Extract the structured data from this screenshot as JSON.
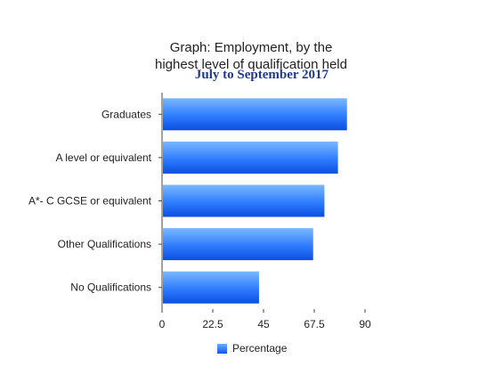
{
  "chart_data": {
    "type": "bar",
    "orientation": "horizontal",
    "title_line1": "Graph:  Employment, by the",
    "title_line2": "highest level of qualification held",
    "subtitle": "July to September 2017",
    "categories": [
      "Graduates",
      "A level or equivalent",
      "A*- C GCSE or equivalent",
      "Other Qualifications",
      "No Qualifications"
    ],
    "series": [
      {
        "name": "Percentage",
        "values": [
          82,
          78,
          72,
          67,
          43
        ],
        "color": "#1a66f5"
      }
    ],
    "xlim": [
      0,
      90
    ],
    "xticks": [
      "0",
      "22.5",
      "45",
      "67.5",
      "90"
    ],
    "grid": false,
    "legend_position": "bottom"
  }
}
